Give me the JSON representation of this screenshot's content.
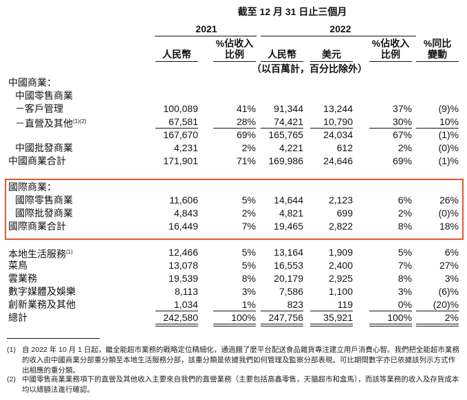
{
  "header": {
    "period": "截至 12 月 31 日止三個月",
    "years": [
      "2021",
      "2022"
    ],
    "columns": [
      [
        "人民幣"
      ],
      [
        "%佔收入",
        "比例"
      ],
      [
        "人民幣"
      ],
      [
        "美元"
      ],
      [
        "%佔收入",
        "比例"
      ],
      [
        "%同比",
        "變動"
      ]
    ],
    "unit_note": "（以百萬計，百分比除外）"
  },
  "table": {
    "rows": [
      {
        "label": "中國商業："
      },
      {
        "label": "中國零售商業"
      },
      {
        "label": "－客戶管理",
        "values": [
          "100,089",
          "41%",
          "91,344",
          "13,244",
          "37%",
          "(9)%"
        ]
      },
      {
        "label": "－直營及其他",
        "note": "(1)(2)",
        "values": [
          "67,581",
          "28%",
          "74,421",
          "10,790",
          "30%",
          "10%"
        ]
      },
      {
        "values": [
          "167,670",
          "69%",
          "165,765",
          "24,034",
          "67%",
          "(1)%"
        ]
      },
      {
        "label": "中國批發商業",
        "values": [
          "4,231",
          "2%",
          "4,221",
          "612",
          "2%",
          "(0)%"
        ]
      },
      {
        "label": "中國商業合計",
        "values": [
          "171,901",
          "71%",
          "169,986",
          "24,646",
          "69%",
          "(1)%"
        ]
      },
      {
        "label": "國際商業："
      },
      {
        "label": "國際零售商業",
        "values": [
          "11,606",
          "5%",
          "14,644",
          "2,123",
          "6%",
          "26%"
        ]
      },
      {
        "label": "國際批發商業",
        "values": [
          "4,843",
          "2%",
          "4,821",
          "699",
          "2%",
          "(0)%"
        ]
      },
      {
        "label": "國際商業合計",
        "values": [
          "16,449",
          "7%",
          "19,465",
          "2,822",
          "8%",
          "18%"
        ]
      },
      {
        "label": "本地生活服務",
        "note": "(1)",
        "values": [
          "12,466",
          "5%",
          "13,164",
          "1,909",
          "5%",
          "6%"
        ]
      },
      {
        "label": "菜鳥",
        "values": [
          "13,078",
          "5%",
          "16,553",
          "2,400",
          "7%",
          "27%"
        ]
      },
      {
        "label": "雲業務",
        "values": [
          "19,539",
          "8%",
          "20,179",
          "2,925",
          "8%",
          "3%"
        ]
      },
      {
        "label": "數字媒體及娛樂",
        "values": [
          "8,113",
          "3%",
          "7,586",
          "1,100",
          "3%",
          "(6)%"
        ]
      },
      {
        "label": "創新業務及其他",
        "values": [
          "1,034",
          "1%",
          "823",
          "119",
          "0%",
          "(20)%"
        ]
      },
      {
        "label": "總計",
        "values": [
          "242,580",
          "100%",
          "247,756",
          "35,921",
          "100%",
          "2%"
        ]
      }
    ]
  },
  "footnotes": [
    {
      "marker": "(1)",
      "text": "自 2022 年 10 月 1 日起，繼全能超市業務的戰略定位精細化，通過餓了麼平台配送食品雜貨專注建立用戶消費心智。我們把全能超市業務的收入由中國商業分部重分類至本地生活服務分部，該重分類是依據我們如何管理及監察分部表現。可比期間數字亦已依據該列示方式作出相應的重分類。"
    },
    {
      "marker": "(2)",
      "text": "中國零售商業業務項下的直營及其他收入主要來自我們的直營業務（主要包括高鑫零售，天貓超市和盒馬），而該等業務的收入及存貨成本均以總額法進行確認。"
    }
  ]
}
